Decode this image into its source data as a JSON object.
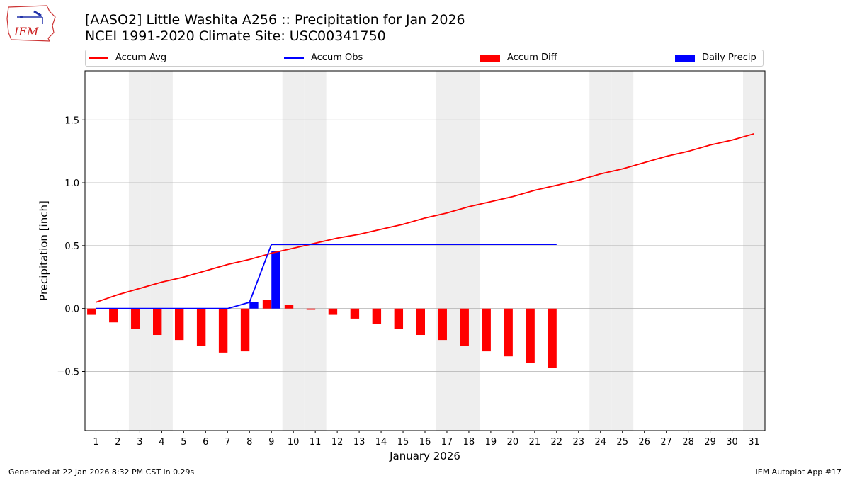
{
  "header": {
    "title_line1": "[AASO2] Little Washita A256 :: Precipitation for Jan 2026",
    "title_line2": "NCEI 1991-2020 Climate Site: USC00341750",
    "logo_text": "IEM"
  },
  "footer": {
    "left": "Generated at 22 Jan 2026 8:32 PM CST in 0.29s",
    "right": "IEM Autoplot App #17"
  },
  "colors": {
    "accum_avg": "#ff0000",
    "accum_obs": "#0000ff",
    "accum_diff": "#ff0000",
    "daily_precip": "#0000ff",
    "weekend_shade": "#eeeeee",
    "grid": "#b0b0b0"
  },
  "chart_data": {
    "type": "bar",
    "xlabel": "January 2026",
    "ylabel": "Precipitation [inch]",
    "ylim": [
      -0.97,
      1.89
    ],
    "xlim": [
      0.5,
      31.5
    ],
    "y_ticks": [
      -0.5,
      0.0,
      0.5,
      1.0,
      1.5
    ],
    "y_tick_labels": [
      "−0.5",
      "0.0",
      "0.5",
      "1.0",
      "1.5"
    ],
    "x": [
      1,
      2,
      3,
      4,
      5,
      6,
      7,
      8,
      9,
      10,
      11,
      12,
      13,
      14,
      15,
      16,
      17,
      18,
      19,
      20,
      21,
      22,
      23,
      24,
      25,
      26,
      27,
      28,
      29,
      30,
      31
    ],
    "x_tick_labels": [
      "1",
      "2",
      "3",
      "4",
      "5",
      "6",
      "7",
      "8",
      "9",
      "10",
      "11",
      "12",
      "13",
      "14",
      "15",
      "16",
      "17",
      "18",
      "19",
      "20",
      "21",
      "22",
      "23",
      "24",
      "25",
      "26",
      "27",
      "28",
      "29",
      "30",
      "31"
    ],
    "weekend_days": [
      3,
      4,
      10,
      11,
      17,
      18,
      24,
      25,
      31
    ],
    "grid": "horizontal",
    "legend_position": "top",
    "series": [
      {
        "name": "Accum Avg",
        "kind": "line",
        "x": [
          1,
          2,
          3,
          4,
          5,
          6,
          7,
          8,
          9,
          10,
          11,
          12,
          13,
          14,
          15,
          16,
          17,
          18,
          19,
          20,
          21,
          22,
          23,
          24,
          25,
          26,
          27,
          28,
          29,
          30,
          31
        ],
        "values": [
          0.05,
          0.11,
          0.16,
          0.21,
          0.25,
          0.3,
          0.35,
          0.39,
          0.44,
          0.48,
          0.52,
          0.56,
          0.59,
          0.63,
          0.67,
          0.72,
          0.76,
          0.81,
          0.85,
          0.89,
          0.94,
          0.98,
          1.02,
          1.07,
          1.11,
          1.16,
          1.21,
          1.25,
          1.3,
          1.34,
          1.39
        ]
      },
      {
        "name": "Accum Obs",
        "kind": "line",
        "x": [
          1,
          2,
          3,
          4,
          5,
          6,
          7,
          8,
          9,
          10,
          11,
          12,
          13,
          14,
          15,
          16,
          17,
          18,
          19,
          20,
          21,
          22
        ],
        "values": [
          0.0,
          0.0,
          0.0,
          0.0,
          0.0,
          0.0,
          0.0,
          0.05,
          0.51,
          0.51,
          0.51,
          0.51,
          0.51,
          0.51,
          0.51,
          0.51,
          0.51,
          0.51,
          0.51,
          0.51,
          0.51,
          0.51
        ]
      },
      {
        "name": "Accum Diff",
        "kind": "bar",
        "x": [
          1,
          2,
          3,
          4,
          5,
          6,
          7,
          8,
          9,
          10,
          11,
          12,
          13,
          14,
          15,
          16,
          17,
          18,
          19,
          20,
          21,
          22
        ],
        "values": [
          -0.05,
          -0.11,
          -0.16,
          -0.21,
          -0.25,
          -0.3,
          -0.35,
          -0.34,
          0.07,
          0.03,
          -0.01,
          -0.05,
          -0.08,
          -0.12,
          -0.16,
          -0.21,
          -0.25,
          -0.3,
          -0.34,
          -0.38,
          -0.43,
          -0.47
        ]
      },
      {
        "name": "Daily Precip",
        "kind": "bar",
        "x": [
          8,
          9
        ],
        "values": [
          0.05,
          0.46
        ]
      }
    ]
  }
}
